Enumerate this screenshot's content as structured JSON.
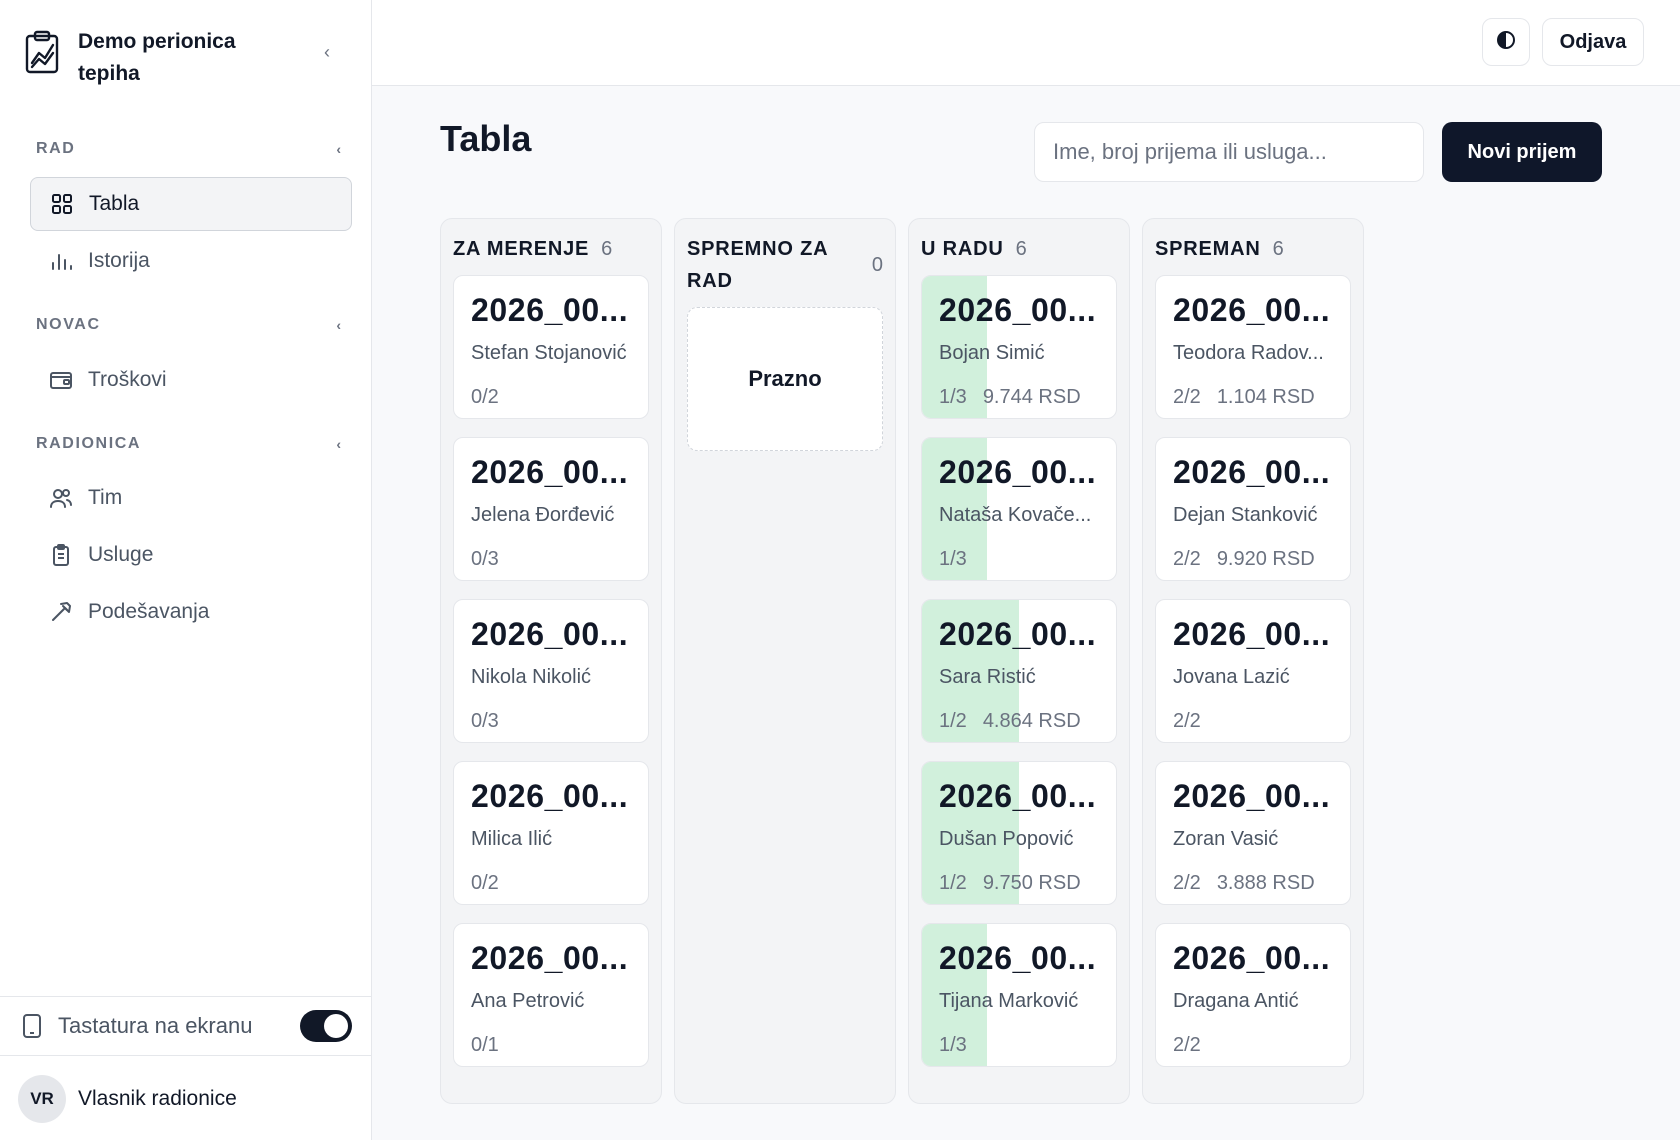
{
  "brand": {
    "title": "Demo perionica tepiha",
    "logo_icon": "clipboard-chart-icon"
  },
  "sidebar": {
    "sections": [
      {
        "label": "RAD",
        "items": [
          {
            "label": "Tabla",
            "icon": "grid-icon",
            "active": true
          },
          {
            "label": "Istorija",
            "icon": "bar-chart-icon"
          }
        ]
      },
      {
        "label": "NOVAC",
        "items": [
          {
            "label": "Troškovi",
            "icon": "wallet-icon"
          }
        ]
      },
      {
        "label": "RADIONICA",
        "items": [
          {
            "label": "Tim",
            "icon": "users-icon"
          },
          {
            "label": "Usluge",
            "icon": "clipboard-icon"
          },
          {
            "label": "Podešavanja",
            "icon": "hammer-icon"
          }
        ]
      }
    ],
    "keyboard": {
      "label": "Tastatura na ekranu",
      "enabled": true
    },
    "user": {
      "initials": "VR",
      "name": "Vlasnik radionice"
    }
  },
  "topbar": {
    "theme_icon": "contrast-icon",
    "logout": "Odjava"
  },
  "page": {
    "title": "Tabla",
    "search_placeholder": "Ime, broj prijema ili usluga...",
    "new_button": "Novi prijem"
  },
  "colors": {
    "accent": "#0f172a",
    "progress": "#d1f0dc"
  },
  "board": {
    "columns": [
      {
        "title": "ZA MERENJE",
        "count": "6",
        "cards": [
          {
            "id": "2026_00...",
            "name": "Stefan Stojanović",
            "progress": "0/2",
            "amount": "",
            "fill": 0
          },
          {
            "id": "2026_00...",
            "name": "Jelena Đorđević",
            "progress": "0/3",
            "amount": "",
            "fill": 0
          },
          {
            "id": "2026_00...",
            "name": "Nikola Nikolić",
            "progress": "0/3",
            "amount": "",
            "fill": 0
          },
          {
            "id": "2026_00...",
            "name": "Milica Ilić",
            "progress": "0/2",
            "amount": "",
            "fill": 0
          },
          {
            "id": "2026_00...",
            "name": "Ana Petrović",
            "progress": "0/1",
            "amount": "",
            "fill": 0
          }
        ]
      },
      {
        "title": "SPREMNO ZA RAD",
        "count": "0",
        "empty": "Prazno",
        "cards": []
      },
      {
        "title": "U RADU",
        "count": "6",
        "cards": [
          {
            "id": "2026_00...",
            "name": "Bojan Simić",
            "progress": "1/3",
            "amount": "9.744 RSD",
            "fill": 0.333
          },
          {
            "id": "2026_00...",
            "name": "Nataša Kovače...",
            "progress": "1/3",
            "amount": "",
            "fill": 0.333
          },
          {
            "id": "2026_00...",
            "name": "Sara Ristić",
            "progress": "1/2",
            "amount": "4.864 RSD",
            "fill": 0.5
          },
          {
            "id": "2026_00...",
            "name": "Dušan Popović",
            "progress": "1/2",
            "amount": "9.750 RSD",
            "fill": 0.5
          },
          {
            "id": "2026_00...",
            "name": "Tijana Marković",
            "progress": "1/3",
            "amount": "",
            "fill": 0.333
          }
        ]
      },
      {
        "title": "SPREMAN",
        "count": "6",
        "cards": [
          {
            "id": "2026_00...",
            "name": "Teodora Radov...",
            "progress": "2/2",
            "amount": "1.104 RSD",
            "fill": 0
          },
          {
            "id": "2026_00...",
            "name": "Dejan Stanković",
            "progress": "2/2",
            "amount": "9.920 RSD",
            "fill": 0
          },
          {
            "id": "2026_00...",
            "name": "Jovana Lazić",
            "progress": "2/2",
            "amount": "",
            "fill": 0
          },
          {
            "id": "2026_00...",
            "name": "Zoran Vasić",
            "progress": "2/2",
            "amount": "3.888 RSD",
            "fill": 0
          },
          {
            "id": "2026_00...",
            "name": "Dragana Antić",
            "progress": "2/2",
            "amount": "",
            "fill": 0
          }
        ]
      }
    ]
  }
}
